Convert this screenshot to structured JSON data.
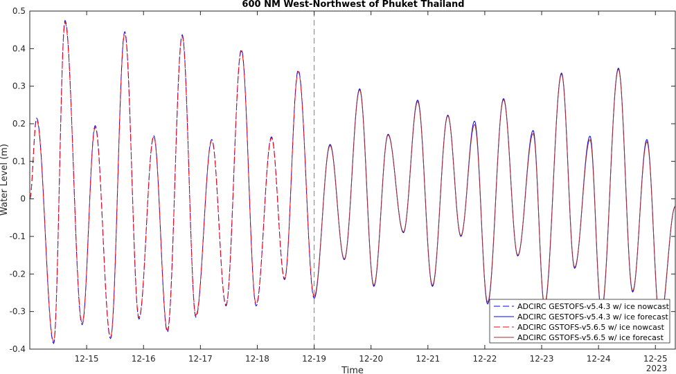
{
  "chart_data": {
    "type": "line",
    "title": "600 NM West-Northwest of Phuket Thailand",
    "xlabel": "Time",
    "ylabel": "Water Level (m)",
    "ylim": [
      -0.4,
      0.5
    ],
    "yticks": [
      -0.4,
      -0.3,
      -0.2,
      -0.1,
      0,
      0.1,
      0.2,
      0.3,
      0.4,
      0.5
    ],
    "ytick_labels": [
      "-0.4",
      "-0.3",
      "-0.2",
      "-0.1",
      "0",
      "0.1",
      "0.2",
      "0.3",
      "0.4",
      "0.5"
    ],
    "xlim_days": [
      14.0,
      25.35
    ],
    "xticks_days": [
      15,
      16,
      17,
      18,
      19,
      20,
      21,
      22,
      23,
      24,
      25
    ],
    "xtick_labels": [
      "12-15",
      "12-16",
      "12-17",
      "12-18",
      "12-19",
      "12-20",
      "12-21",
      "12-22",
      "12-23",
      "12-24",
      "12-25"
    ],
    "x_year_label": "2023",
    "nowcast_end_day": 19.0,
    "grid": false,
    "legend_position": "bottom-right",
    "colors": {
      "v543": "#0000ff",
      "v565": "#ff0000",
      "divider": "#808080"
    },
    "series": [
      {
        "name": "ADCIRC GESTOFS-v5.4.3 w/ ice nowcast",
        "style": "dashed",
        "color": "#0000ff",
        "x": [
          14.0,
          14.12,
          14.42,
          14.62,
          14.92,
          15.15,
          15.42,
          15.67,
          15.92,
          16.18,
          16.42,
          16.68,
          16.92,
          17.2,
          17.45,
          17.72,
          17.98,
          18.25,
          18.48,
          18.72,
          19.0
        ],
        "y": [
          0.0,
          0.215,
          -0.385,
          0.475,
          -0.335,
          0.195,
          -0.372,
          0.445,
          -0.32,
          0.168,
          -0.355,
          0.437,
          -0.315,
          0.158,
          -0.285,
          0.398,
          -0.285,
          0.165,
          -0.215,
          0.343,
          -0.265
        ]
      },
      {
        "name": "ADCIRC GESTOFS-v5.4.3 w/ ice forecast",
        "style": "solid",
        "color": "#0000ff",
        "x": [
          19.0,
          19.28,
          19.53,
          19.8,
          20.05,
          20.3,
          20.57,
          20.82,
          21.08,
          21.35,
          21.58,
          21.82,
          22.05,
          22.33,
          22.58,
          22.85,
          23.05,
          23.35,
          23.58,
          23.85,
          24.05,
          24.35,
          24.6,
          24.85,
          25.08,
          25.35
        ],
        "y": [
          -0.265,
          0.145,
          -0.162,
          0.293,
          -0.233,
          0.172,
          -0.09,
          0.263,
          -0.233,
          0.223,
          -0.1,
          0.207,
          -0.28,
          0.267,
          -0.152,
          0.182,
          -0.285,
          0.335,
          -0.185,
          0.167,
          -0.3,
          0.348,
          -0.248,
          0.158,
          -0.33,
          -0.02
        ]
      },
      {
        "name": "ADCIRC GSTOFS-v5.6.5 w/ ice nowcast",
        "style": "dashed",
        "color": "#ff0000",
        "x": [
          14.0,
          14.12,
          14.42,
          14.62,
          14.92,
          15.15,
          15.42,
          15.67,
          15.92,
          16.18,
          16.42,
          16.68,
          16.92,
          17.2,
          17.45,
          17.72,
          17.98,
          18.25,
          18.48,
          18.72,
          19.0
        ],
        "y": [
          0.0,
          0.21,
          -0.38,
          0.47,
          -0.33,
          0.19,
          -0.368,
          0.44,
          -0.316,
          0.165,
          -0.35,
          0.432,
          -0.31,
          0.155,
          -0.282,
          0.394,
          -0.281,
          0.162,
          -0.212,
          0.339,
          -0.26
        ]
      },
      {
        "name": "ADCIRC GSTOFS-v5.6.5 w/ ice forecast",
        "style": "solid",
        "color": "#a52a2a",
        "x": [
          19.0,
          19.28,
          19.53,
          19.8,
          20.05,
          20.3,
          20.57,
          20.82,
          21.08,
          21.35,
          21.58,
          21.82,
          22.05,
          22.33,
          22.58,
          22.85,
          23.05,
          23.35,
          23.58,
          23.85,
          24.05,
          24.35,
          24.6,
          24.85,
          25.08,
          25.35
        ],
        "y": [
          -0.26,
          0.142,
          -0.16,
          0.29,
          -0.23,
          0.17,
          -0.088,
          0.259,
          -0.23,
          0.221,
          -0.098,
          0.198,
          -0.275,
          0.264,
          -0.15,
          0.174,
          -0.28,
          0.332,
          -0.182,
          0.158,
          -0.295,
          0.345,
          -0.245,
          0.152,
          -0.325,
          -0.02
        ]
      }
    ]
  }
}
